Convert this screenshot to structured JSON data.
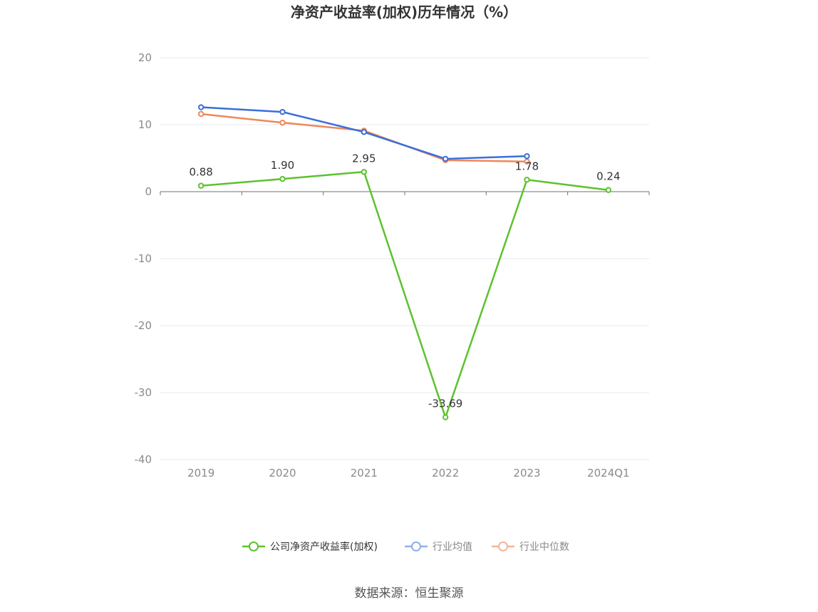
{
  "chart_data": {
    "type": "line",
    "title": "净资产收益率(加权)历年情况（%）",
    "categories": [
      "2019",
      "2020",
      "2021",
      "2022",
      "2023",
      "2024Q1"
    ],
    "ylim": [
      -40,
      20
    ],
    "yticks": [
      20,
      10,
      0,
      -10,
      -20,
      -30,
      -40
    ],
    "grid": true,
    "legend_position": "bottom",
    "series": [
      {
        "name": "公司净资产收益率(加权)",
        "color": "#5cc22e",
        "values": [
          0.88,
          1.9,
          2.95,
          -33.69,
          1.78,
          0.24
        ],
        "labels": [
          "0.88",
          "1.90",
          "2.95",
          "-33.69",
          "1.78",
          "0.24"
        ]
      },
      {
        "name": "行业均值",
        "color": "#3a6fd8",
        "values": [
          12.6,
          11.9,
          8.9,
          4.9,
          5.3,
          null
        ]
      },
      {
        "name": "行业中位数",
        "color": "#f0875a",
        "values": [
          11.6,
          10.3,
          9.1,
          4.7,
          4.5,
          null
        ]
      }
    ]
  },
  "legend": {
    "colors": [
      "#5cc22e",
      "#8fb0ec",
      "#f5b49a"
    ],
    "text_colors": [
      "#333333",
      "#888888",
      "#888888"
    ]
  },
  "source": "数据来源：恒生聚源"
}
